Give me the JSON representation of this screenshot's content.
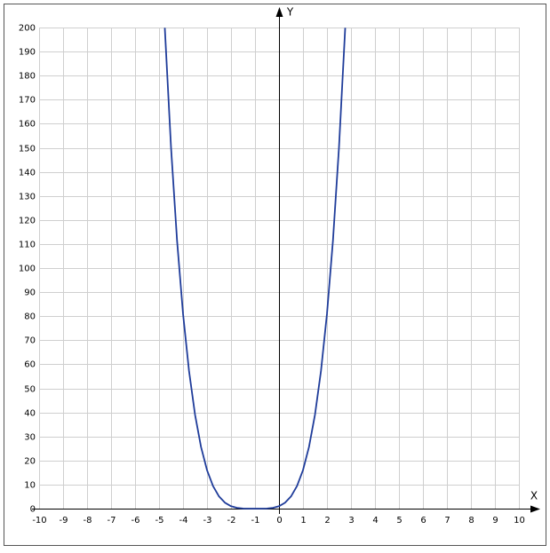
{
  "chart_data": {
    "type": "line",
    "x_label": "X",
    "y_label": "Y",
    "xlim": [
      -10,
      10
    ],
    "ylim": [
      0,
      200
    ],
    "xticks": [
      -10,
      -9,
      -8,
      -7,
      -6,
      -5,
      -4,
      -3,
      -2,
      -1,
      0,
      1,
      2,
      3,
      4,
      5,
      6,
      7,
      8,
      9,
      10
    ],
    "yticks": [
      0,
      10,
      20,
      30,
      40,
      50,
      60,
      70,
      80,
      90,
      100,
      110,
      120,
      130,
      140,
      150,
      160,
      170,
      180,
      190,
      200
    ],
    "grid": true,
    "series": [
      {
        "color": "#1f3c9a",
        "x": [
          -4.76,
          -4.5,
          -4.25,
          -4,
          -3.75,
          -3.5,
          -3.25,
          -3,
          -2.75,
          -2.5,
          -2.25,
          -2,
          -1.75,
          -1.5,
          -1.25,
          -1,
          -0.75,
          -0.5,
          -0.25,
          0,
          0.25,
          0.5,
          0.75,
          1,
          1.25,
          1.5,
          1.75,
          2,
          2.25,
          2.5,
          2.76
        ],
        "values": [
          199.9,
          150.06,
          111.57,
          81,
          57.19,
          39.06,
          25.63,
          16,
          9.38,
          5.06,
          2.44,
          1,
          0.32,
          0.06,
          0,
          0,
          0,
          0.06,
          0.32,
          1,
          2.44,
          5.06,
          9.38,
          16,
          25.63,
          39.06,
          57.19,
          81,
          111.57,
          150.06,
          199.9
        ]
      }
    ]
  }
}
